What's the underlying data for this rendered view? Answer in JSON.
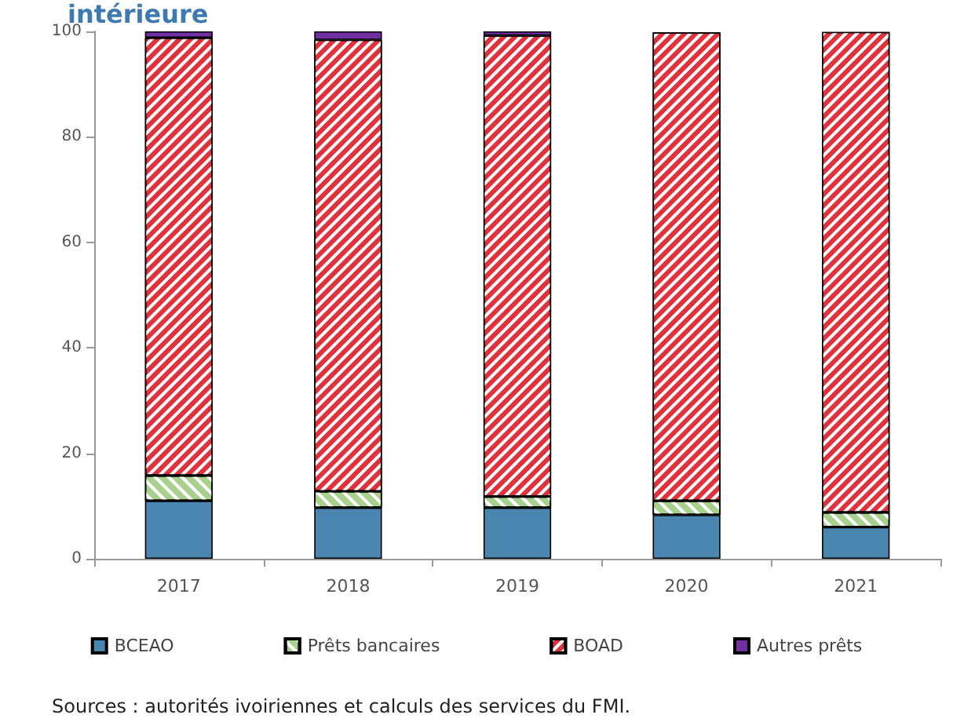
{
  "chart_data": {
    "type": "bar",
    "title": "intérieure",
    "stacked": true,
    "categories": [
      "2017",
      "2018",
      "2019",
      "2020",
      "2021"
    ],
    "series": [
      {
        "name": "BCEAO",
        "color": "#4a86b0",
        "values": [
          11,
          9.7,
          9.7,
          8.3,
          6.0
        ]
      },
      {
        "name": "Prêts bancaires",
        "color": "#a9d18e",
        "values": [
          4.8,
          3.1,
          2.1,
          2.7,
          2.8
        ]
      },
      {
        "name": "BOAD",
        "color": "#e0323c",
        "values": [
          83,
          85.6,
          87.4,
          88.8,
          91.1
        ]
      },
      {
        "name": "Autres prêts",
        "color": "#7030a0",
        "values": [
          1.2,
          1.6,
          0.8,
          null,
          null
        ]
      }
    ],
    "ylim": [
      0,
      100
    ],
    "yticks": [
      0,
      20,
      40,
      60,
      80,
      100
    ],
    "grid": false,
    "legend": "bottom",
    "annotations": [
      "Sources : autorités ivoiriennes et calculs des services du FMI."
    ]
  }
}
